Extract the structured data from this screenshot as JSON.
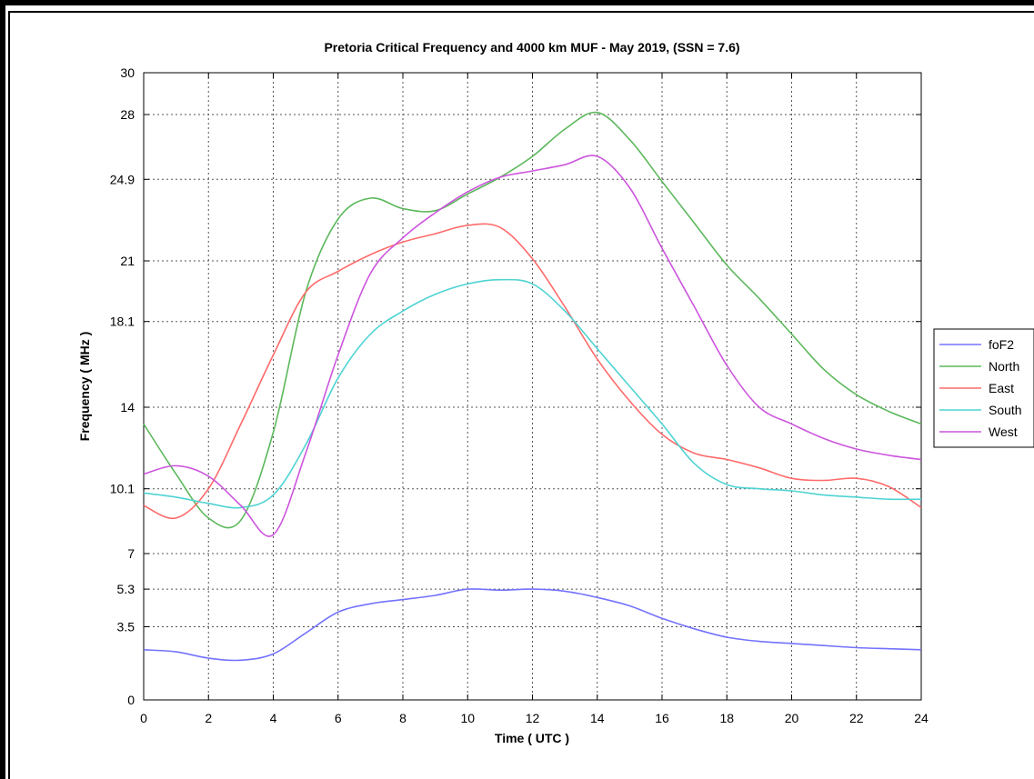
{
  "chart_data": {
    "type": "line",
    "title": "Pretoria Critical Frequency and 4000 km MUF - May 2019, (SSN = 7.6)",
    "xlabel": "Time ( UTC )",
    "ylabel": "Frequency ( MHz )",
    "xlim": [
      0,
      24
    ],
    "ylim": [
      0,
      30
    ],
    "x_ticks": [
      0,
      2,
      4,
      6,
      8,
      10,
      12,
      14,
      16,
      18,
      20,
      22,
      24
    ],
    "y_ticks": [
      0,
      3.5,
      5.3,
      7,
      10.1,
      14,
      18.1,
      21,
      24.9,
      28,
      30
    ],
    "y_tick_labels": [
      "0",
      "3.5",
      "5.3",
      "7",
      "10.1",
      "14",
      "18.1",
      "21",
      "24.9",
      "28",
      "30"
    ],
    "grid": true,
    "legend_position": "right",
    "series": [
      {
        "name": "foF2",
        "color": "#7373ff",
        "x": [
          0,
          1,
          2,
          3,
          4,
          5,
          6,
          7,
          8,
          9,
          10,
          11,
          12,
          13,
          14,
          15,
          16,
          17,
          18,
          19,
          20,
          21,
          22,
          23,
          24
        ],
        "y": [
          2.4,
          2.3,
          2.0,
          1.9,
          2.2,
          3.2,
          4.2,
          4.6,
          4.8,
          5.0,
          5.3,
          5.25,
          5.3,
          5.2,
          4.9,
          4.5,
          3.9,
          3.4,
          3.0,
          2.8,
          2.7,
          2.6,
          2.5,
          2.45,
          2.4
        ]
      },
      {
        "name": "North",
        "color": "#5cb85c",
        "x": [
          0,
          1,
          2,
          3,
          4,
          5,
          6,
          7,
          8,
          9,
          10,
          11,
          12,
          13,
          14,
          15,
          16,
          17,
          18,
          19,
          20,
          21,
          22,
          23,
          24
        ],
        "y": [
          13.2,
          10.8,
          8.7,
          8.6,
          12.8,
          19.5,
          23.0,
          24.0,
          23.5,
          23.4,
          24.2,
          25.0,
          26.0,
          27.3,
          28.1,
          26.8,
          24.8,
          22.8,
          20.8,
          19.2,
          17.5,
          15.8,
          14.6,
          13.8,
          13.2
        ]
      },
      {
        "name": "East",
        "color": "#ff6a6a",
        "x": [
          0,
          1,
          2,
          3,
          4,
          5,
          6,
          7,
          8,
          9,
          10,
          11,
          12,
          13,
          14,
          15,
          16,
          17,
          18,
          19,
          20,
          21,
          22,
          23,
          24
        ],
        "y": [
          9.3,
          8.7,
          10.1,
          13.2,
          16.5,
          19.5,
          20.5,
          21.3,
          21.9,
          22.3,
          22.7,
          22.6,
          21.1,
          18.8,
          16.3,
          14.3,
          12.7,
          11.8,
          11.5,
          11.1,
          10.6,
          10.5,
          10.6,
          10.2,
          9.2
        ]
      },
      {
        "name": "South",
        "color": "#4fd3d3",
        "x": [
          0,
          1,
          2,
          3,
          4,
          5,
          6,
          7,
          8,
          9,
          10,
          11,
          12,
          13,
          14,
          15,
          16,
          17,
          18,
          19,
          20,
          21,
          22,
          23,
          24
        ],
        "y": [
          9.9,
          9.7,
          9.4,
          9.2,
          9.8,
          12.2,
          15.4,
          17.5,
          18.6,
          19.4,
          19.9,
          20.1,
          19.9,
          18.6,
          16.8,
          15.0,
          13.2,
          11.3,
          10.3,
          10.1,
          10.0,
          9.8,
          9.7,
          9.6,
          9.6
        ]
      },
      {
        "name": "West",
        "color": "#cc55dd",
        "x": [
          0,
          1,
          2,
          3,
          4,
          5,
          6,
          7,
          8,
          9,
          10,
          11,
          12,
          13,
          14,
          15,
          16,
          17,
          18,
          19,
          20,
          21,
          22,
          23,
          24
        ],
        "y": [
          10.8,
          11.2,
          10.7,
          9.3,
          7.9,
          11.8,
          16.5,
          20.4,
          22.1,
          23.3,
          24.3,
          25.0,
          25.3,
          25.6,
          26.0,
          24.5,
          21.6,
          18.8,
          16.0,
          14.0,
          13.2,
          12.5,
          12.0,
          11.7,
          11.5
        ]
      }
    ]
  }
}
